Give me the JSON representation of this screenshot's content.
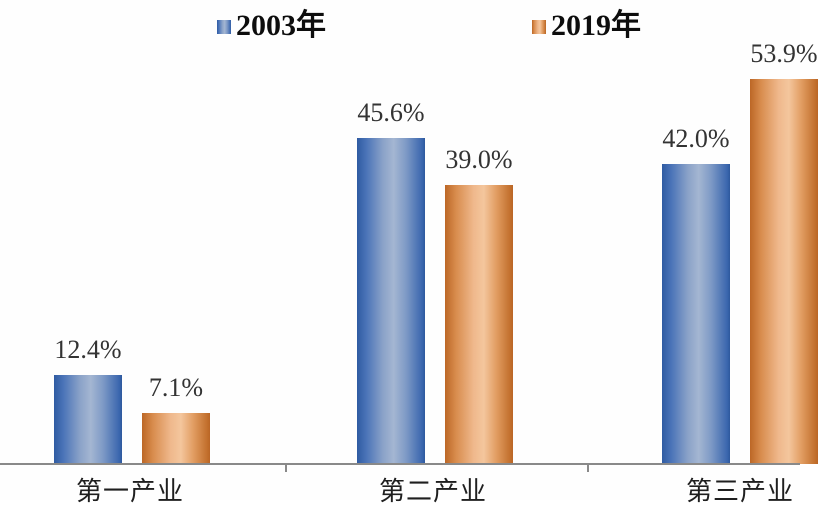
{
  "chart_data": {
    "type": "bar",
    "categories": [
      "第一产业",
      "第二产业",
      "第三产业"
    ],
    "series": [
      {
        "name": "2003年",
        "color": "#4472c4",
        "values": [
          12.4,
          45.6,
          42.0
        ]
      },
      {
        "name": "2019年",
        "color": "#ed7d31",
        "values": [
          7.1,
          39.0,
          53.9
        ]
      }
    ],
    "value_labels": [
      [
        "12.4%",
        "45.6%",
        "42.0%"
      ],
      [
        "7.1%",
        "39.0%",
        "53.9%"
      ]
    ],
    "unit": "%",
    "ylim": [
      0,
      65
    ],
    "grid": false,
    "legend_position": "top",
    "axis_color": "#898989"
  }
}
